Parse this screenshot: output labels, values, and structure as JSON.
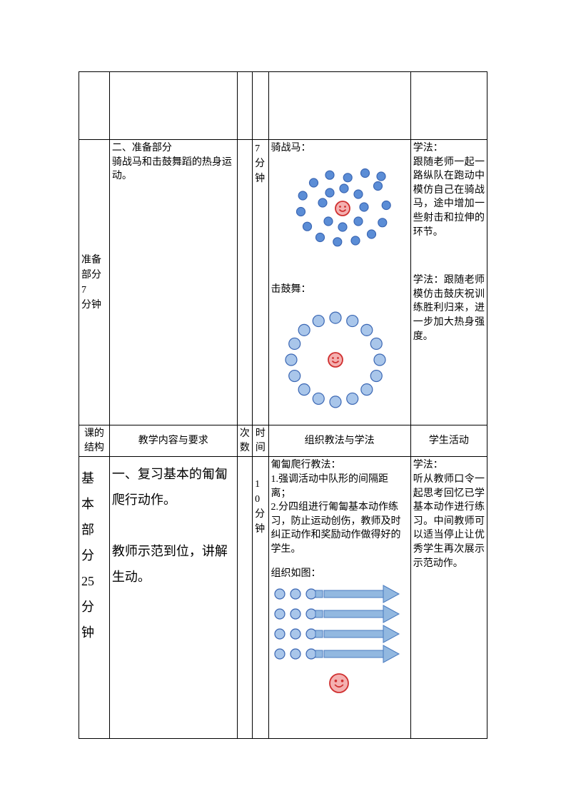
{
  "row_empty_height": 95,
  "row2": {
    "col1_lines": [
      "准备",
      "部分",
      "7",
      "分钟"
    ],
    "col2_text": "二、准备部分\n骑战马和击鼓舞蹈的热身运动。",
    "col4_lines": [
      "7",
      "分",
      "钟"
    ],
    "diag1_label": "骑战马：",
    "diag2_label": "击鼓舞：",
    "col6_text1": "学法：\n跟随老师一起一路纵队在跑动中模仿自己在骑战马，途中增加一些射击和拉伸的环节。",
    "col6_text2": "学法：跟随老师模仿击鼓庆祝训练胜利归来，进一步加大热身强度。"
  },
  "header": {
    "c1": "课的\n结构",
    "c2": "教学内容与要求",
    "c3": "次\n数",
    "c4": "时\n间",
    "c5": "组织教法与学法",
    "c6": "学生活动"
  },
  "row4": {
    "col1_lines": [
      "基",
      "本",
      "部",
      "分",
      "25",
      "分",
      "钟"
    ],
    "col2_text": "一、复习基本的匍匐爬行动作。\n\n教师示范到位，讲解生动。",
    "col4_lines": [
      "1",
      "0",
      "分",
      "钟"
    ],
    "col5_text": "匍匐爬行教法：\n1.强调活动中队形的间隔距离；\n2.分四组进行匍匐基本动作练习，防止运动创伤，教师及时纠正动作和奖励动作做得好的学生。",
    "col5_label2": "组织如图：",
    "col6_text": "学法：\n听从教师口令一起思考回忆已学基本动作进行练习。中间教师可以适当停止让优秀学生再次展示示范动作。"
  },
  "colors": {
    "circle_stroke": "#3a66b3",
    "circle_fill_dark": "#5b8dd6",
    "circle_fill_light": "#a9c6ea",
    "smiley_fill": "#f4b0b0",
    "smiley_stroke": "#d03030",
    "arrow_fill": "#92b8e0",
    "arrow_stroke": "#4a7bc0"
  }
}
